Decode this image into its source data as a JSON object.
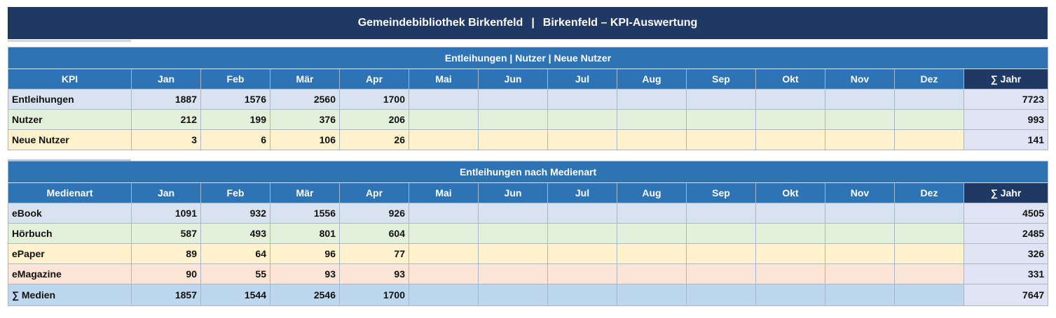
{
  "title": {
    "library": "Gemeindebibliothek Birkenfeld",
    "separator": "|",
    "subtitle": "Birkenfeld – KPI-Auswertung"
  },
  "months": [
    "Jan",
    "Feb",
    "Mär",
    "Apr",
    "Mai",
    "Jun",
    "Jul",
    "Aug",
    "Sep",
    "Okt",
    "Nov",
    "Dez"
  ],
  "sum_header": "∑ Jahr",
  "kpi_table": {
    "caption": "Entleihungen | Nutzer | Neue Nutzer",
    "label_header": "KPI",
    "rows": [
      {
        "label": "Entleihungen",
        "values": [
          "1887",
          "1576",
          "2560",
          "1700",
          "",
          "",
          "",
          "",
          "",
          "",
          "",
          ""
        ],
        "total": "7723",
        "color": "blue"
      },
      {
        "label": "Nutzer",
        "values": [
          "212",
          "199",
          "376",
          "206",
          "",
          "",
          "",
          "",
          "",
          "",
          "",
          ""
        ],
        "total": "993",
        "color": "green"
      },
      {
        "label": "Neue Nutzer",
        "values": [
          "3",
          "6",
          "106",
          "26",
          "",
          "",
          "",
          "",
          "",
          "",
          "",
          ""
        ],
        "total": "141",
        "color": "yellow"
      }
    ]
  },
  "media_table": {
    "caption": "Entleihungen nach Medienart",
    "label_header": "Medienart",
    "rows": [
      {
        "label": "eBook",
        "values": [
          "1091",
          "932",
          "1556",
          "926",
          "",
          "",
          "",
          "",
          "",
          "",
          "",
          ""
        ],
        "total": "4505",
        "color": "blue"
      },
      {
        "label": "Hörbuch",
        "values": [
          "587",
          "493",
          "801",
          "604",
          "",
          "",
          "",
          "",
          "",
          "",
          "",
          ""
        ],
        "total": "2485",
        "color": "green"
      },
      {
        "label": "ePaper",
        "values": [
          "89",
          "64",
          "96",
          "77",
          "",
          "",
          "",
          "",
          "",
          "",
          "",
          ""
        ],
        "total": "326",
        "color": "yellow"
      },
      {
        "label": "eMagazine",
        "values": [
          "90",
          "55",
          "93",
          "93",
          "",
          "",
          "",
          "",
          "",
          "",
          "",
          ""
        ],
        "total": "331",
        "color": "red"
      },
      {
        "label": "∑ Medien",
        "values": [
          "1857",
          "1544",
          "2546",
          "1700",
          "",
          "",
          "",
          "",
          "",
          "",
          "",
          ""
        ],
        "total": "7647",
        "color": "total"
      }
    ]
  }
}
